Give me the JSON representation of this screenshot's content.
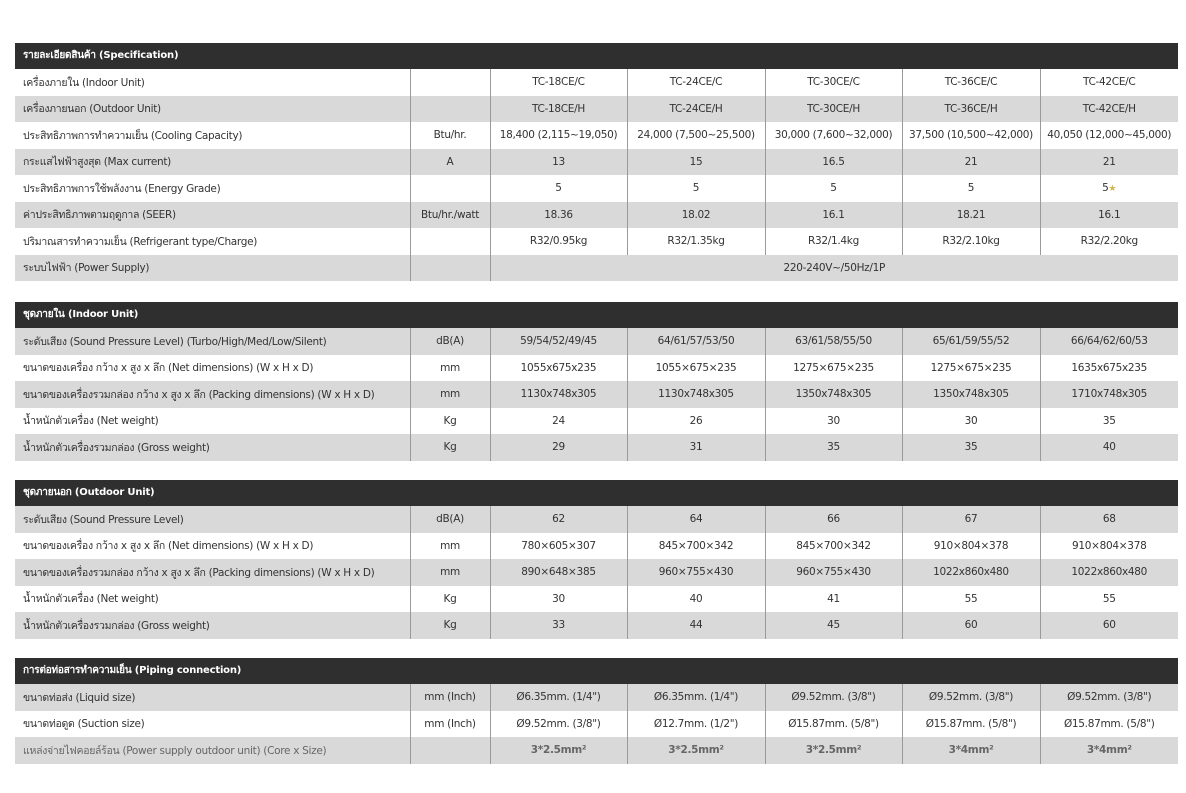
{
  "sections": [
    {
      "title": "รายละเอียดสินค้า (Specification)",
      "first_row_gray": false,
      "rows": [
        {
          "label": "เครื่องภายใน (Indoor Unit)",
          "unit": "",
          "values": [
            "TC-18CE/C",
            "TC-24CE/C",
            "TC-30CE/C",
            "TC-36CE/C",
            "TC-42CE/C"
          ]
        },
        {
          "label": "เครื่องภายนอก (Outdoor Unit)",
          "unit": "",
          "values": [
            "TC-18CE/H",
            "TC-24CE/H",
            "TC-30CE/H",
            "TC-36CE/H",
            "TC-42CE/H"
          ]
        },
        {
          "label": "ประสิทธิภาพการทำความเย็น (Cooling Capacity)",
          "unit": "Btu/hr.",
          "values": [
            "18,400 (2,115~19,050)",
            "24,000 (7,500~25,500)",
            "30,000 (7,600~32,000)",
            "37,500 (10,500~42,000)",
            "40,050 (12,000~45,000)"
          ]
        },
        {
          "label": "กระแสไฟฟ้าสูงสุด (Max current)",
          "unit": "A",
          "values": [
            "13",
            "15",
            "16.5",
            "21",
            "21"
          ]
        },
        {
          "label": "ประสิทธิภาพการใช้พลังงาน (Energy Grade)",
          "unit": "",
          "values": [
            "5",
            "5",
            "5",
            "5",
            "5"
          ],
          "star_on_last": true
        },
        {
          "label": "ค่าประสิทธิภาพตามฤดูกาล (SEER)",
          "unit": "Btu/hr./watt",
          "values": [
            "18.36",
            "18.02",
            "16.1",
            "18.21",
            "16.1"
          ]
        },
        {
          "label": "ปริมาณสารทำความเย็น (Refrigerant type/Charge)",
          "unit": "",
          "values": [
            "R32/0.95kg",
            "R32/1.35kg",
            "R32/1.4kg",
            "R32/2.10kg",
            "R32/2.20kg"
          ]
        },
        {
          "label": "ระบบไฟฟ้า (Power Supply)",
          "merged": "220-240V~/50Hz/1P"
        }
      ]
    },
    {
      "title": "ชุดภายใน (Indoor Unit)",
      "first_row_gray": true,
      "rows": [
        {
          "label": "ระดับเสียง (Sound Pressure Level) (Turbo/High/Med/Low/Silent)",
          "unit": "dB(A)",
          "values": [
            "59/54/52/49/45",
            "64/61/57/53/50",
            "63/61/58/55/50",
            "65/61/59/55/52",
            "66/64/62/60/53"
          ]
        },
        {
          "label": "ขนาดของเครื่อง กว้าง x สูง x ลึก (Net dimensions) (W x H x D)",
          "unit": "mm",
          "values": [
            "1055x675x235",
            "1055×675×235",
            "1275×675×235",
            "1275×675×235",
            "1635x675x235"
          ]
        },
        {
          "label": "ขนาดของเครื่องรวมกล่อง กว้าง x สูง x ลึก (Packing dimensions) (W x H x D)",
          "unit": "mm",
          "values": [
            "1130x748x305",
            "1130x748x305",
            "1350x748x305",
            "1350x748x305",
            "1710x748x305"
          ]
        },
        {
          "label": "น้ำหนักตัวเครื่อง (Net weight)",
          "unit": "Kg",
          "values": [
            "24",
            "26",
            "30",
            "30",
            "35"
          ]
        },
        {
          "label": "น้ำหนักตัวเครื่องรวมกล่อง (Gross weight)",
          "unit": "Kg",
          "values": [
            "29",
            "31",
            "35",
            "35",
            "40"
          ]
        }
      ]
    },
    {
      "title": "ชุดภายนอก (Outdoor Unit)",
      "first_row_gray": true,
      "rows": [
        {
          "label": "ระดับเสียง (Sound Pressure Level)",
          "unit": "dB(A)",
          "values": [
            "62",
            "64",
            "66",
            "67",
            "68"
          ]
        },
        {
          "label": "ขนาดของเครื่อง กว้าง x สูง x ลึก (Net dimensions) (W x H x D)",
          "unit": "mm",
          "values": [
            "780×605×307",
            "845×700×342",
            "845×700×342",
            "910×804×378",
            "910×804×378"
          ]
        },
        {
          "label": "ขนาดของเครื่องรวมกล่อง กว้าง x สูง x ลึก (Packing dimensions) (W x H x D)",
          "unit": "mm",
          "values": [
            "890×648×385",
            "960×755×430",
            "960×755×430",
            "1022x860x480",
            "1022x860x480"
          ]
        },
        {
          "label": "น้ำหนักตัวเครื่อง (Net weight)",
          "unit": "Kg",
          "values": [
            "30",
            "40",
            "41",
            "55",
            "55"
          ]
        },
        {
          "label": "น้ำหนักตัวเครื่องรวมกล่อง (Gross weight)",
          "unit": "Kg",
          "values": [
            "33",
            "44",
            "45",
            "60",
            "60"
          ]
        }
      ]
    },
    {
      "title": "การต่อท่อสารทำความเย็น (Piping connection)",
      "first_row_gray": true,
      "rows": [
        {
          "label": "ขนาดท่อส่ง (Liquid size)",
          "unit": "mm (Inch)",
          "values": [
            "Ø6.35mm. (1/4\")",
            "Ø6.35mm. (1/4\")",
            "Ø9.52mm. (3/8\")",
            "Ø9.52mm. (3/8\")",
            "Ø9.52mm. (3/8\")"
          ]
        },
        {
          "label": "ขนาดท่อดูด (Suction size)",
          "unit": "mm (Inch)",
          "values": [
            "Ø9.52mm. (3/8\")",
            "Ø12.7mm. (1/2\")",
            "Ø15.87mm. (5/8\")",
            "Ø15.87mm. (5/8\")",
            "Ø15.87mm. (5/8\")"
          ]
        },
        {
          "label": "แหล่งจ่ายไฟคอยล์ร้อน (Power supply outdoor unit) (Core x Size)",
          "unit": "",
          "values": [
            "3*2.5mm²",
            "3*2.5mm²",
            "3*2.5mm²",
            "3*4mm²",
            "3*4mm²"
          ],
          "bold_values": true,
          "light_label": true
        }
      ]
    }
  ],
  "colors": {
    "header_bg": "#2f2f2f",
    "row_gray": "#d9d9d9",
    "star": "#d9b44a"
  },
  "icons": {
    "energy_star": "star-icon"
  }
}
